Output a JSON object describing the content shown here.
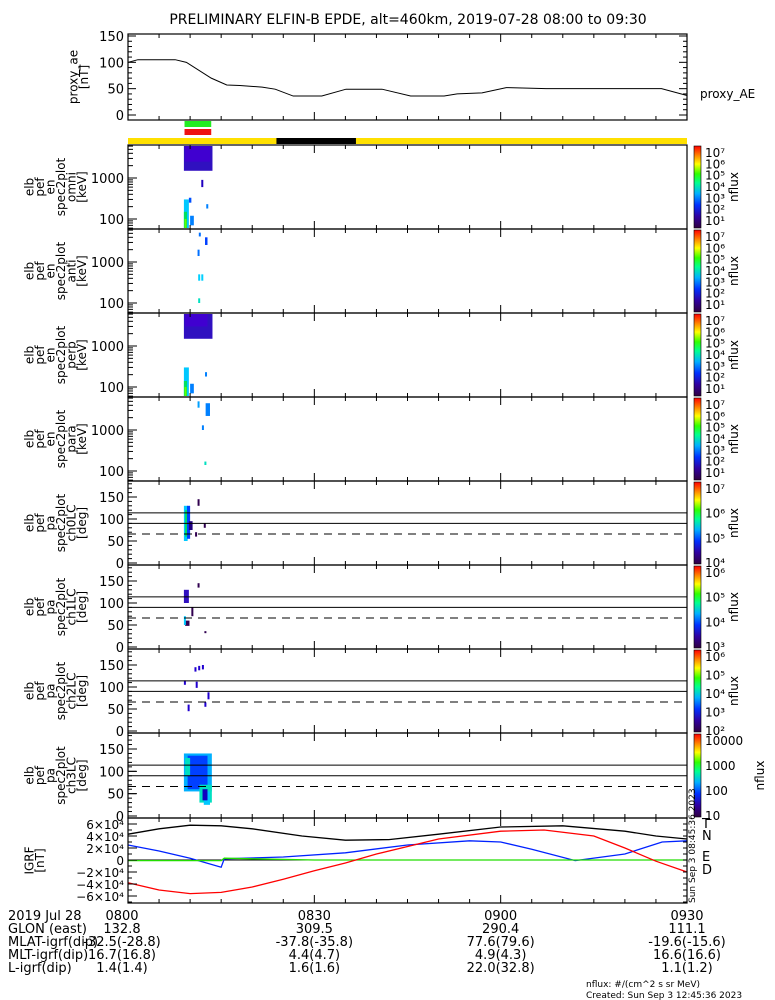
{
  "title": "PRELIMINARY ELFIN-B EPDE, alt=460km, 2019-07-28 08:00 to 09:30",
  "colors": {
    "green_bar": "#22ee22",
    "red_bar": "#ee1111",
    "yellow_bar": "#ffe000",
    "black_bar": "#000000",
    "igrf_T": "#000000",
    "igrf_N": "#0022ff",
    "igrf_E": "#22dd00",
    "igrf_D": "#ff0000"
  },
  "chart_data": [
    {
      "type": "line",
      "name": "proxy_ae",
      "ylabel": [
        "proxy_ae",
        "[nT]"
      ],
      "legend": "proxy_AE",
      "ylim": [
        0,
        150
      ],
      "yticks": [
        "0",
        "50",
        "100",
        "150"
      ],
      "x_minutes_after_0800": [
        0,
        1.6,
        7.6,
        9.4,
        13.4,
        15.9,
        18,
        21.6,
        23.7,
        26.6,
        31.2,
        35.1,
        40.9,
        45.5,
        50.9,
        53,
        57,
        60.9,
        67.3,
        85.9,
        90
      ],
      "y": [
        100,
        105,
        105,
        100,
        70,
        57,
        56,
        53,
        49,
        36,
        36,
        49,
        49,
        36,
        36,
        40,
        42,
        52,
        50,
        50,
        37
      ],
      "bars": {
        "green_minutes": [
          9.1,
          13.4
        ],
        "red_minutes": [
          9.1,
          13.4
        ],
        "black_minutes": [
          23.9,
          36.7
        ]
      }
    },
    {
      "type": "heatmap",
      "panels": [
        {
          "ylabel": [
            "elb",
            "pef",
            "en",
            "spec2plot",
            "omni",
            "[keV]"
          ],
          "scale": "energy",
          "yticks": [
            "100",
            "1000"
          ],
          "cbar": "nflux",
          "cbar_ticks": [
            "10⁷",
            "10⁶",
            "10⁵",
            "10⁴",
            "10³",
            "10²",
            "10¹"
          ],
          "blobs": [
            [
              9.0,
              13.6,
              1500,
              6200,
              "#3010c0"
            ],
            [
              9.2,
              13.2,
              2500,
              6000,
              "#4000d0"
            ],
            [
              9.0,
              9.8,
              60,
              300,
              "#00c8ff"
            ],
            [
              9.0,
              9.5,
              60,
              150,
              "#00e060"
            ],
            [
              9.1,
              9.4,
              60,
              100,
              "#60ff00"
            ],
            [
              10.0,
              10.6,
              70,
              120,
              "#0080ff"
            ],
            [
              9.8,
              10.2,
              250,
              330,
              "#0050ff"
            ],
            [
              11.8,
              12.1,
              600,
              900,
              "#2000c0"
            ],
            [
              12.6,
              12.8,
              180,
              230,
              "#0080ff"
            ]
          ]
        },
        {
          "ylabel": [
            "elb",
            "pef",
            "en",
            "spec2plot",
            "anti",
            "[keV]"
          ],
          "scale": "energy",
          "yticks": [
            "100",
            "1000"
          ],
          "cbar": "nflux",
          "cbar_ticks": [
            "10⁷",
            "10⁶",
            "10⁵",
            "10⁴",
            "10³",
            "10²",
            "10¹"
          ],
          "blobs": [
            [
              12.4,
              12.8,
              2600,
              4000,
              "#0040ff"
            ],
            [
              11.2,
              11.4,
              1400,
              2000,
              "#0070ff"
            ],
            [
              11.4,
              11.6,
              4200,
              5200,
              "#0070ff"
            ],
            [
              11.3,
              11.5,
              350,
              500,
              "#00d0ff"
            ],
            [
              11.8,
              12.0,
              350,
              500,
              "#00d0ff"
            ],
            [
              11.3,
              11.4,
              100,
              130,
              "#00e0c0"
            ]
          ]
        },
        {
          "ylabel": [
            "elb",
            "pef",
            "en",
            "spec2plot",
            "perp",
            "[keV]"
          ],
          "scale": "energy",
          "yticks": [
            "100",
            "1000"
          ],
          "cbar": "nflux",
          "cbar_ticks": [
            "10⁷",
            "10⁶",
            "10⁵",
            "10⁴",
            "10³",
            "10²",
            "10¹"
          ],
          "blobs": [
            [
              9.0,
              13.6,
              1500,
              6200,
              "#3010c0"
            ],
            [
              9.2,
              12.8,
              3000,
              6000,
              "#4000d0"
            ],
            [
              9.0,
              9.8,
              60,
              300,
              "#00c8ff"
            ],
            [
              9.0,
              9.5,
              60,
              140,
              "#00e060"
            ],
            [
              9.1,
              9.4,
              60,
              100,
              "#60ff00"
            ],
            [
              10.0,
              10.6,
              70,
              120,
              "#0080ff"
            ],
            [
              12.4,
              12.6,
              180,
              230,
              "#0080ff"
            ]
          ]
        },
        {
          "ylabel": [
            "elb",
            "pef",
            "en",
            "spec2plot",
            "para",
            "[keV]"
          ],
          "scale": "energy",
          "yticks": [
            "100",
            "1000"
          ],
          "cbar": "nflux",
          "cbar_ticks": [
            "10⁷",
            "10⁶",
            "10⁵",
            "10⁴",
            "10³",
            "10²",
            "10¹"
          ],
          "blobs": [
            [
              11.2,
              11.4,
              3500,
              5000,
              "#00a0ff"
            ],
            [
              12.5,
              13.2,
              2200,
              4500,
              "#0080ff"
            ],
            [
              11.9,
              12.2,
              1000,
              1300,
              "#0080ff"
            ],
            [
              12.3,
              12.5,
              140,
              170,
              "#00e0c0"
            ]
          ]
        },
        {
          "ylabel": [
            "elb",
            "pef",
            "pa",
            "spec2plot",
            "ch0LC",
            "[deg]"
          ],
          "scale": "pa",
          "yticks": [
            "0",
            "50",
            "100",
            "150"
          ],
          "cbar": "nflux",
          "cbar_ticks": [
            "10⁷",
            "10⁶",
            "10⁵",
            "10⁴"
          ],
          "lines": [
            114,
            90
          ],
          "dashed": 66,
          "blobs": [
            [
              9.0,
              9.6,
              50,
              130,
              "#00c8ff"
            ],
            [
              9.2,
              9.7,
              60,
              120,
              "#00e060"
            ],
            [
              9.5,
              10.0,
              55,
              130,
              "#0040ff"
            ],
            [
              9.8,
              10.4,
              75,
              95,
              "#200080"
            ],
            [
              10.8,
              11.0,
              60,
              70,
              "#300050"
            ],
            [
              12.2,
              12.4,
              80,
              90,
              "#300050"
            ],
            [
              11.2,
              11.4,
              130,
              145,
              "#300050"
            ]
          ]
        },
        {
          "ylabel": [
            "elb",
            "pef",
            "pa",
            "spec2plot",
            "ch1LC",
            "[deg]"
          ],
          "scale": "pa",
          "yticks": [
            "0",
            "50",
            "100",
            "150"
          ],
          "cbar": "nflux",
          "cbar_ticks": [
            "10⁶",
            "10⁵",
            "10⁴",
            "10³"
          ],
          "lines": [
            114,
            90
          ],
          "dashed": 66,
          "blobs": [
            [
              9.0,
              9.8,
              100,
              130,
              "#3010c0"
            ],
            [
              9.2,
              9.9,
              48,
              60,
              "#300050"
            ],
            [
              9.0,
              9.3,
              50,
              70,
              "#00c8ff"
            ],
            [
              10.2,
              10.4,
              70,
              90,
              "#300050"
            ],
            [
              11.2,
              11.4,
              135,
              145,
              "#300050"
            ],
            [
              12.3,
              12.4,
              32,
              36,
              "#300050"
            ]
          ]
        },
        {
          "ylabel": [
            "elb",
            "pef",
            "pa",
            "spec2plot",
            "ch2LC",
            "[deg]"
          ],
          "scale": "pa",
          "yticks": [
            "0",
            "50",
            "100",
            "150"
          ],
          "cbar": "nflux",
          "cbar_ticks": [
            "10⁶",
            "10⁵",
            "10⁴",
            "10³",
            "10²"
          ],
          "lines": [
            114,
            90
          ],
          "dashed": 66,
          "blobs": [
            [
              9.0,
              9.2,
              105,
              115,
              "#2000d0"
            ],
            [
              10.7,
              10.9,
              135,
              145,
              "#2000d0"
            ],
            [
              11.3,
              11.5,
              138,
              148,
              "#2000d0"
            ],
            [
              11.9,
              12.1,
              140,
              150,
              "#2000d0"
            ],
            [
              10.9,
              11.1,
              98,
              112,
              "#2000d0"
            ],
            [
              12.8,
              13.0,
              72,
              88,
              "#2000d0"
            ],
            [
              9.6,
              9.8,
              45,
              60,
              "#2000d0"
            ],
            [
              12.3,
              12.5,
              55,
              65,
              "#2000d0"
            ]
          ]
        },
        {
          "ylabel": [
            "elb",
            "pef",
            "pa",
            "spec2plot",
            "ch3LC",
            "[deg]"
          ],
          "scale": "pa",
          "yticks": [
            "0",
            "50",
            "100",
            "150"
          ],
          "cbar": "nflux",
          "cbar_ticks": [
            "10000",
            "1000",
            "100",
            "10"
          ],
          "lines": [
            114,
            90
          ],
          "dashed": 66,
          "blobs": [
            [
              9.0,
              13.5,
              55,
              140,
              "#00b0ff"
            ],
            [
              9.6,
              12.8,
              60,
              135,
              "#0040ff"
            ],
            [
              9.2,
              10.0,
              90,
              130,
              "#00e0c0"
            ],
            [
              11.5,
              13.5,
              30,
              70,
              "#00e0c0"
            ],
            [
              12.2,
              13.2,
              25,
              55,
              "#00c8ff"
            ],
            [
              12.0,
              12.8,
              35,
              60,
              "#1000c0"
            ]
          ]
        }
      ]
    },
    {
      "type": "line",
      "name": "IGRF",
      "ylabel": [
        "IGRF",
        "[nT]"
      ],
      "ylim": [
        -72000,
        72000
      ],
      "yticks": [
        "−6×10⁴",
        "−4×10⁴",
        "−2×10⁴",
        "0",
        "2×10⁴",
        "4×10⁴",
        "6×10⁴"
      ],
      "ytick_values": [
        -60000,
        -40000,
        -20000,
        0,
        20000,
        40000,
        60000
      ],
      "series": [
        {
          "name": "T",
          "x": [
            0,
            5,
            10,
            15,
            20,
            28,
            35,
            42,
            50,
            60,
            70,
            80,
            85,
            90
          ],
          "y": [
            43000,
            52000,
            58000,
            57000,
            52000,
            40000,
            33000,
            34000,
            43000,
            55000,
            57000,
            48000,
            40000,
            35000
          ]
        },
        {
          "name": "N",
          "x": [
            0,
            5,
            10,
            15,
            15.5,
            25,
            35,
            45,
            55,
            60,
            65,
            72,
            80,
            86,
            90
          ],
          "y": [
            25000,
            15000,
            3000,
            -12000,
            2000,
            5000,
            12000,
            25000,
            32000,
            30000,
            18000,
            -1000,
            10000,
            30000,
            32000
          ]
        },
        {
          "name": "E",
          "x": [
            0,
            7,
            15,
            15.5,
            20,
            30,
            50,
            70,
            90
          ],
          "y": [
            -1000,
            -1000,
            -1000,
            3000,
            2000,
            0,
            0,
            0,
            0
          ]
        },
        {
          "name": "D",
          "x": [
            0,
            5,
            10,
            15,
            20,
            25,
            30,
            35,
            40,
            50,
            60,
            67,
            75,
            80,
            85,
            90
          ],
          "y": [
            -38000,
            -50000,
            -56000,
            -54000,
            -45000,
            -32000,
            -18000,
            -5000,
            10000,
            35000,
            48000,
            50000,
            40000,
            20000,
            -2000,
            -20000
          ]
        }
      ]
    }
  ],
  "igrf_legend": [
    "T",
    "N",
    "E",
    "D"
  ],
  "created_vertical": "Sun Sep  3 08:45:36 2023",
  "footer": {
    "rows": [
      {
        "label": "2019 Jul 28",
        "values": [
          "0800",
          "0830",
          "0900",
          "0930"
        ]
      },
      {
        "label": "GLON (east)",
        "values": [
          "132.8",
          "309.5",
          "290.4",
          "111.1"
        ]
      },
      {
        "label": "MLAT-igrf(dip)",
        "values": [
          "-32.5(-28.8)",
          "-37.8(-35.8)",
          "77.6(79.6)",
          "-19.6(-15.6)"
        ]
      },
      {
        "label": "MLT-igrf(dip)",
        "values": [
          "16.7(16.8)",
          "4.4(4.7)",
          "4.9(4.3)",
          "16.6(16.6)"
        ]
      },
      {
        "label": "L-igrf(dip)",
        "values": [
          "1.4(1.4)",
          "1.6(1.6)",
          "22.0(32.8)",
          "1.1(1.2)"
        ]
      }
    ],
    "units": "nflux: #/(cm^2 s sr MeV)",
    "created": "Created: Sun Sep  3 12:45:36 2023"
  }
}
